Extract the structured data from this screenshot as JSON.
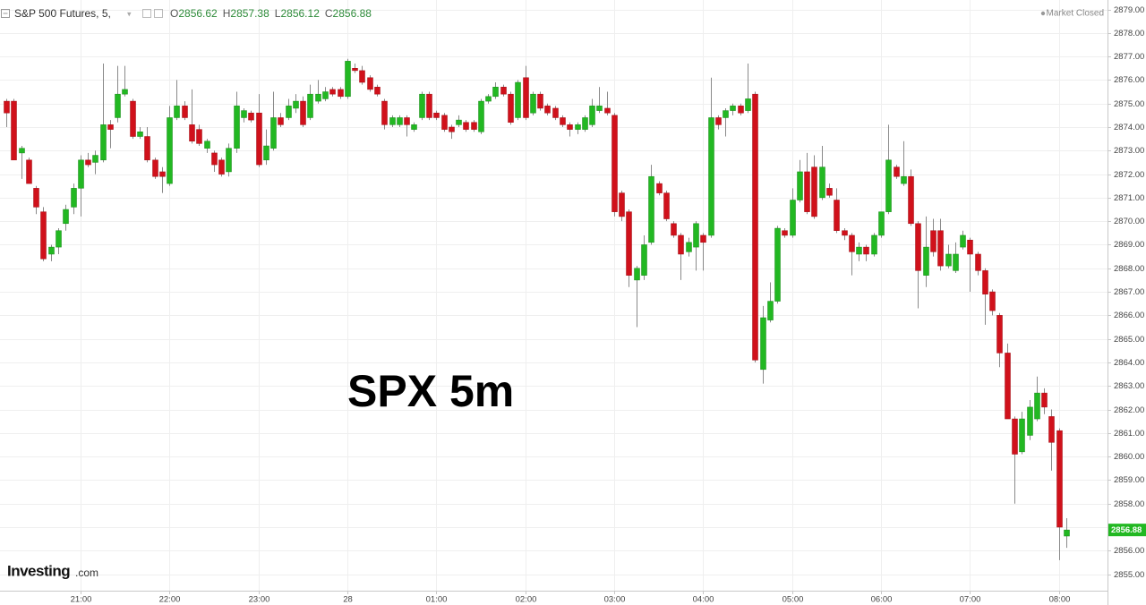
{
  "chart_data": {
    "type": "candlestick",
    "title": "S&P 500 Futures, 5,",
    "ohlc_labels": [
      "O",
      "H",
      "L",
      "C"
    ],
    "status": "Market Closed",
    "annotation": "SPX 5m",
    "logo": {
      "name": "Investing",
      "suffix": ".com"
    },
    "up_color": "#22b822",
    "down_color": "#d0111b",
    "wick_color": "#8a8a8a",
    "grid": true,
    "ylim": [
      2854.3,
      2879.4
    ],
    "yticks": [
      {
        "value": 2855,
        "label": "2855.00"
      },
      {
        "value": 2856,
        "label": "2856.00"
      },
      {
        "value": 2857,
        "label": "2857.00"
      },
      {
        "value": 2858,
        "label": "2858.00"
      },
      {
        "value": 2859,
        "label": "2859.00"
      },
      {
        "value": 2860,
        "label": "2860.00"
      },
      {
        "value": 2861,
        "label": "2861.00"
      },
      {
        "value": 2862,
        "label": "2862.00"
      },
      {
        "value": 2863,
        "label": "2863.00"
      },
      {
        "value": 2864,
        "label": "2864.00"
      },
      {
        "value": 2865,
        "label": "2865.00"
      },
      {
        "value": 2866,
        "label": "2866.00"
      },
      {
        "value": 2867,
        "label": "2867.00"
      },
      {
        "value": 2868,
        "label": "2868.00"
      },
      {
        "value": 2869,
        "label": "2869.00"
      },
      {
        "value": 2870,
        "label": "2870.00"
      },
      {
        "value": 2871,
        "label": "2871.00"
      },
      {
        "value": 2872,
        "label": "2872.00"
      },
      {
        "value": 2873,
        "label": "2873.00"
      },
      {
        "value": 2874,
        "label": "2874.00"
      },
      {
        "value": 2875,
        "label": "2875.00"
      },
      {
        "value": 2876,
        "label": "2876.00"
      },
      {
        "value": 2877,
        "label": "2877.00"
      },
      {
        "value": 2878,
        "label": "2878.00"
      },
      {
        "value": 2879,
        "label": "2879.00"
      }
    ],
    "categories": [
      null,
      null,
      null,
      null,
      null,
      null,
      null,
      null,
      null,
      null,
      "21:00",
      null,
      null,
      null,
      null,
      null,
      null,
      null,
      null,
      null,
      null,
      null,
      "22:00",
      null,
      null,
      null,
      null,
      null,
      null,
      null,
      null,
      null,
      null,
      null,
      "23:00",
      null,
      null,
      null,
      null,
      null,
      null,
      null,
      null,
      null,
      null,
      null,
      "28",
      null,
      null,
      null,
      null,
      null,
      null,
      null,
      null,
      null,
      null,
      null,
      "01:00",
      null,
      null,
      null,
      null,
      null,
      null,
      null,
      null,
      null,
      null,
      null,
      "02:00",
      null,
      null,
      null,
      null,
      null,
      null,
      null,
      null,
      null,
      null,
      null,
      "03:00",
      null,
      null,
      null,
      null,
      null,
      null,
      null,
      null,
      null,
      null,
      null,
      "04:00",
      null,
      null,
      null,
      null,
      null,
      null,
      null,
      null,
      null,
      null,
      null,
      "05:00",
      null,
      null,
      null,
      null,
      null,
      null,
      null,
      null,
      null,
      null,
      null,
      "06:00",
      null,
      null,
      null,
      null,
      null,
      null,
      null,
      null,
      null,
      null,
      null,
      "07:00",
      null,
      null,
      null,
      null,
      null,
      null,
      null,
      null,
      null,
      null,
      null,
      "08:00",
      null
    ],
    "open": [
      2875.1,
      2875.1,
      2872.9,
      2872.6,
      2871.4,
      2870.4,
      2868.6,
      2868.9,
      2869.9,
      2870.6,
      2871.4,
      2872.6,
      2872.5,
      2872.6,
      2874.1,
      2874.4,
      2875.4,
      2875.1,
      2873.6,
      2873.6,
      2872.6,
      2872.1,
      2871.6,
      2874.4,
      2874.9,
      2874.1,
      2873.9,
      2873.1,
      2872.9,
      2872.6,
      2872.1,
      2873.1,
      2874.4,
      2874.6,
      2874.6,
      2872.6,
      2873.1,
      2874.4,
      2874.4,
      2874.8,
      2875.1,
      2874.4,
      2875.1,
      2875.2,
      2875.6,
      2875.6,
      2875.3,
      2876.5,
      2876.4,
      2876.1,
      2875.7,
      2875.1,
      2874.1,
      2874.1,
      2874.4,
      2873.9,
      2874.4,
      2875.4,
      2874.6,
      2874.5,
      2874.0,
      2874.1,
      2874.2,
      2874.2,
      2873.8,
      2875.1,
      2875.3,
      2875.7,
      2875.4,
      2874.4,
      2876.1,
      2874.6,
      2875.4,
      2874.9,
      2874.8,
      2874.4,
      2874.1,
      2873.9,
      2873.9,
      2874.1,
      2874.7,
      2874.8,
      2874.5,
      2871.2,
      2870.4,
      2867.5,
      2867.7,
      2869.1,
      2871.6,
      2871.2,
      2869.9,
      2869.4,
      2868.7,
      2868.9,
      2869.4,
      2869.4,
      2874.4,
      2874.4,
      2874.7,
      2874.9,
      2874.7,
      2875.4,
      2863.7,
      2865.8,
      2866.6,
      2869.6,
      2869.4,
      2870.9,
      2872.1,
      2872.3,
      2871.0,
      2871.4,
      2870.9,
      2869.6,
      2869.4,
      2868.6,
      2868.9,
      2868.6,
      2869.4,
      2870.4,
      2872.3,
      2871.6,
      2871.9,
      2869.9,
      2867.7,
      2869.6,
      2869.6,
      2868.1,
      2867.9,
      2868.9,
      2869.2,
      2868.6,
      2867.9,
      2867.0,
      2866.0,
      2864.4,
      2861.6,
      2860.2,
      2860.9,
      2861.6,
      2862.7,
      2861.7,
      2861.1,
      2856.62
    ],
    "high": [
      2875.2,
      2875.2,
      2873.2,
      2872.7,
      2871.5,
      2870.6,
      2869.0,
      2869.7,
      2870.7,
      2871.6,
      2872.8,
      2872.9,
      2873.0,
      2876.7,
      2874.3,
      2876.6,
      2876.6,
      2875.2,
      2874.0,
      2874.0,
      2872.7,
      2872.3,
      2874.9,
      2876.0,
      2875.1,
      2875.6,
      2874.1,
      2873.5,
      2873.0,
      2872.7,
      2873.3,
      2875.5,
      2874.8,
      2874.7,
      2875.4,
      2873.9,
      2875.5,
      2874.6,
      2875.2,
      2875.4,
      2875.3,
      2875.8,
      2876.0,
      2875.7,
      2875.7,
      2875.7,
      2876.9,
      2876.7,
      2876.6,
      2876.2,
      2875.8,
      2875.2,
      2874.5,
      2874.5,
      2874.5,
      2874.2,
      2875.5,
      2875.5,
      2874.7,
      2874.6,
      2874.1,
      2874.5,
      2874.3,
      2874.3,
      2875.2,
      2875.4,
      2875.9,
      2875.8,
      2875.5,
      2876.0,
      2876.6,
      2875.5,
      2875.5,
      2875.0,
      2874.9,
      2874.5,
      2874.2,
      2874.2,
      2874.5,
      2875.2,
      2875.7,
      2875.5,
      2874.6,
      2871.3,
      2870.5,
      2868.1,
      2869.4,
      2872.4,
      2871.7,
      2871.3,
      2870.0,
      2869.5,
      2869.3,
      2870.0,
      2869.5,
      2876.1,
      2874.5,
      2874.8,
      2875.0,
      2875.0,
      2876.7,
      2875.5,
      2866.4,
      2867.4,
      2869.8,
      2869.7,
      2871.4,
      2872.6,
      2872.9,
      2872.8,
      2873.2,
      2871.6,
      2871.4,
      2869.7,
      2869.5,
      2869.1,
      2869.0,
      2869.5,
      2870.4,
      2874.1,
      2872.4,
      2873.4,
      2872.2,
      2870.0,
      2870.2,
      2870.1,
      2870.1,
      2869.0,
      2869.1,
      2869.6,
      2869.3,
      2868.7,
      2868.0,
      2867.1,
      2866.1,
      2864.8,
      2861.7,
      2861.9,
      2862.4,
      2863.4,
      2862.9,
      2862.0,
      2861.2,
      2857.38
    ],
    "low": [
      2874.0,
      2872.6,
      2871.8,
      2871.6,
      2870.3,
      2868.3,
      2868.3,
      2868.6,
      2869.6,
      2870.3,
      2870.2,
      2872.3,
      2872.0,
      2872.5,
      2873.1,
      2874.2,
      2875.3,
      2873.5,
      2873.5,
      2872.5,
      2871.8,
      2871.2,
      2871.5,
      2874.3,
      2874.3,
      2873.3,
      2873.2,
      2872.9,
      2872.1,
      2871.9,
      2871.9,
      2872.9,
      2874.2,
      2874.2,
      2872.3,
      2872.4,
      2873.0,
      2874.0,
      2874.3,
      2874.6,
      2874.0,
      2874.3,
      2875.0,
      2875.1,
      2875.3,
      2875.2,
      2875.2,
      2876.3,
      2875.8,
      2875.5,
      2875.3,
      2873.9,
      2874.0,
      2874.0,
      2873.6,
      2873.8,
      2874.3,
      2874.3,
      2874.3,
      2873.8,
      2873.5,
      2874.0,
      2873.8,
      2873.8,
      2873.7,
      2875.0,
      2875.2,
      2875.3,
      2874.1,
      2874.3,
      2874.3,
      2874.5,
      2874.7,
      2874.5,
      2874.3,
      2874.0,
      2873.6,
      2873.7,
      2873.8,
      2874.0,
      2874.6,
      2874.5,
      2870.2,
      2870.0,
      2867.2,
      2865.5,
      2867.5,
      2869.0,
      2871.1,
      2870.0,
      2869.3,
      2867.5,
      2868.5,
      2867.9,
      2867.9,
      2869.3,
      2873.9,
      2873.6,
      2874.5,
      2874.5,
      2874.6,
      2864.0,
      2863.1,
      2865.7,
      2866.5,
      2869.3,
      2869.3,
      2870.8,
      2870.3,
      2870.1,
      2870.9,
      2871.0,
      2869.5,
      2869.2,
      2867.7,
      2868.3,
      2868.3,
      2868.5,
      2869.3,
      2870.3,
      2871.8,
      2871.5,
      2869.8,
      2866.3,
      2867.2,
      2868.5,
      2867.9,
      2868.0,
      2867.8,
      2868.8,
      2867.0,
      2867.7,
      2865.6,
      2866.0,
      2863.8,
      2861.6,
      2858.0,
      2860.1,
      2860.7,
      2861.5,
      2861.8,
      2859.4,
      2855.6,
      2856.12
    ],
    "close": [
      2874.6,
      2872.6,
      2873.1,
      2871.6,
      2870.6,
      2868.4,
      2868.9,
      2869.6,
      2870.5,
      2871.4,
      2872.6,
      2872.4,
      2872.8,
      2874.1,
      2873.9,
      2875.4,
      2875.6,
      2873.6,
      2873.8,
      2872.6,
      2871.9,
      2871.9,
      2874.4,
      2874.9,
      2874.4,
      2873.4,
      2873.3,
      2873.4,
      2872.4,
      2872.0,
      2873.1,
      2874.9,
      2874.7,
      2874.3,
      2872.4,
      2873.2,
      2874.4,
      2874.1,
      2874.9,
      2875.1,
      2874.1,
      2875.4,
      2875.4,
      2875.5,
      2875.4,
      2875.3,
      2876.8,
      2876.4,
      2875.9,
      2875.6,
      2875.4,
      2874.1,
      2874.4,
      2874.4,
      2874.1,
      2874.1,
      2875.4,
      2874.4,
      2874.4,
      2873.9,
      2873.8,
      2874.3,
      2873.9,
      2873.9,
      2875.1,
      2875.3,
      2875.7,
      2875.4,
      2874.2,
      2875.9,
      2874.4,
      2875.4,
      2874.8,
      2874.6,
      2874.4,
      2874.1,
      2873.9,
      2874.1,
      2874.4,
      2874.9,
      2874.9,
      2874.6,
      2870.4,
      2870.2,
      2867.7,
      2868.0,
      2869.0,
      2871.9,
      2871.2,
      2870.1,
      2869.4,
      2868.6,
      2869.1,
      2869.9,
      2869.1,
      2874.4,
      2874.1,
      2874.7,
      2874.9,
      2874.6,
      2875.2,
      2864.1,
      2865.9,
      2866.6,
      2869.7,
      2869.4,
      2870.9,
      2872.1,
      2870.4,
      2870.2,
      2872.3,
      2871.1,
      2869.6,
      2869.4,
      2868.7,
      2868.9,
      2868.6,
      2869.4,
      2870.4,
      2872.6,
      2871.9,
      2871.9,
      2869.9,
      2867.9,
      2868.9,
      2868.7,
      2868.1,
      2868.6,
      2868.6,
      2869.4,
      2868.6,
      2867.9,
      2866.9,
      2866.2,
      2864.4,
      2861.6,
      2860.1,
      2861.6,
      2862.1,
      2862.7,
      2862.1,
      2860.6,
      2857.0,
      2856.88
    ]
  }
}
